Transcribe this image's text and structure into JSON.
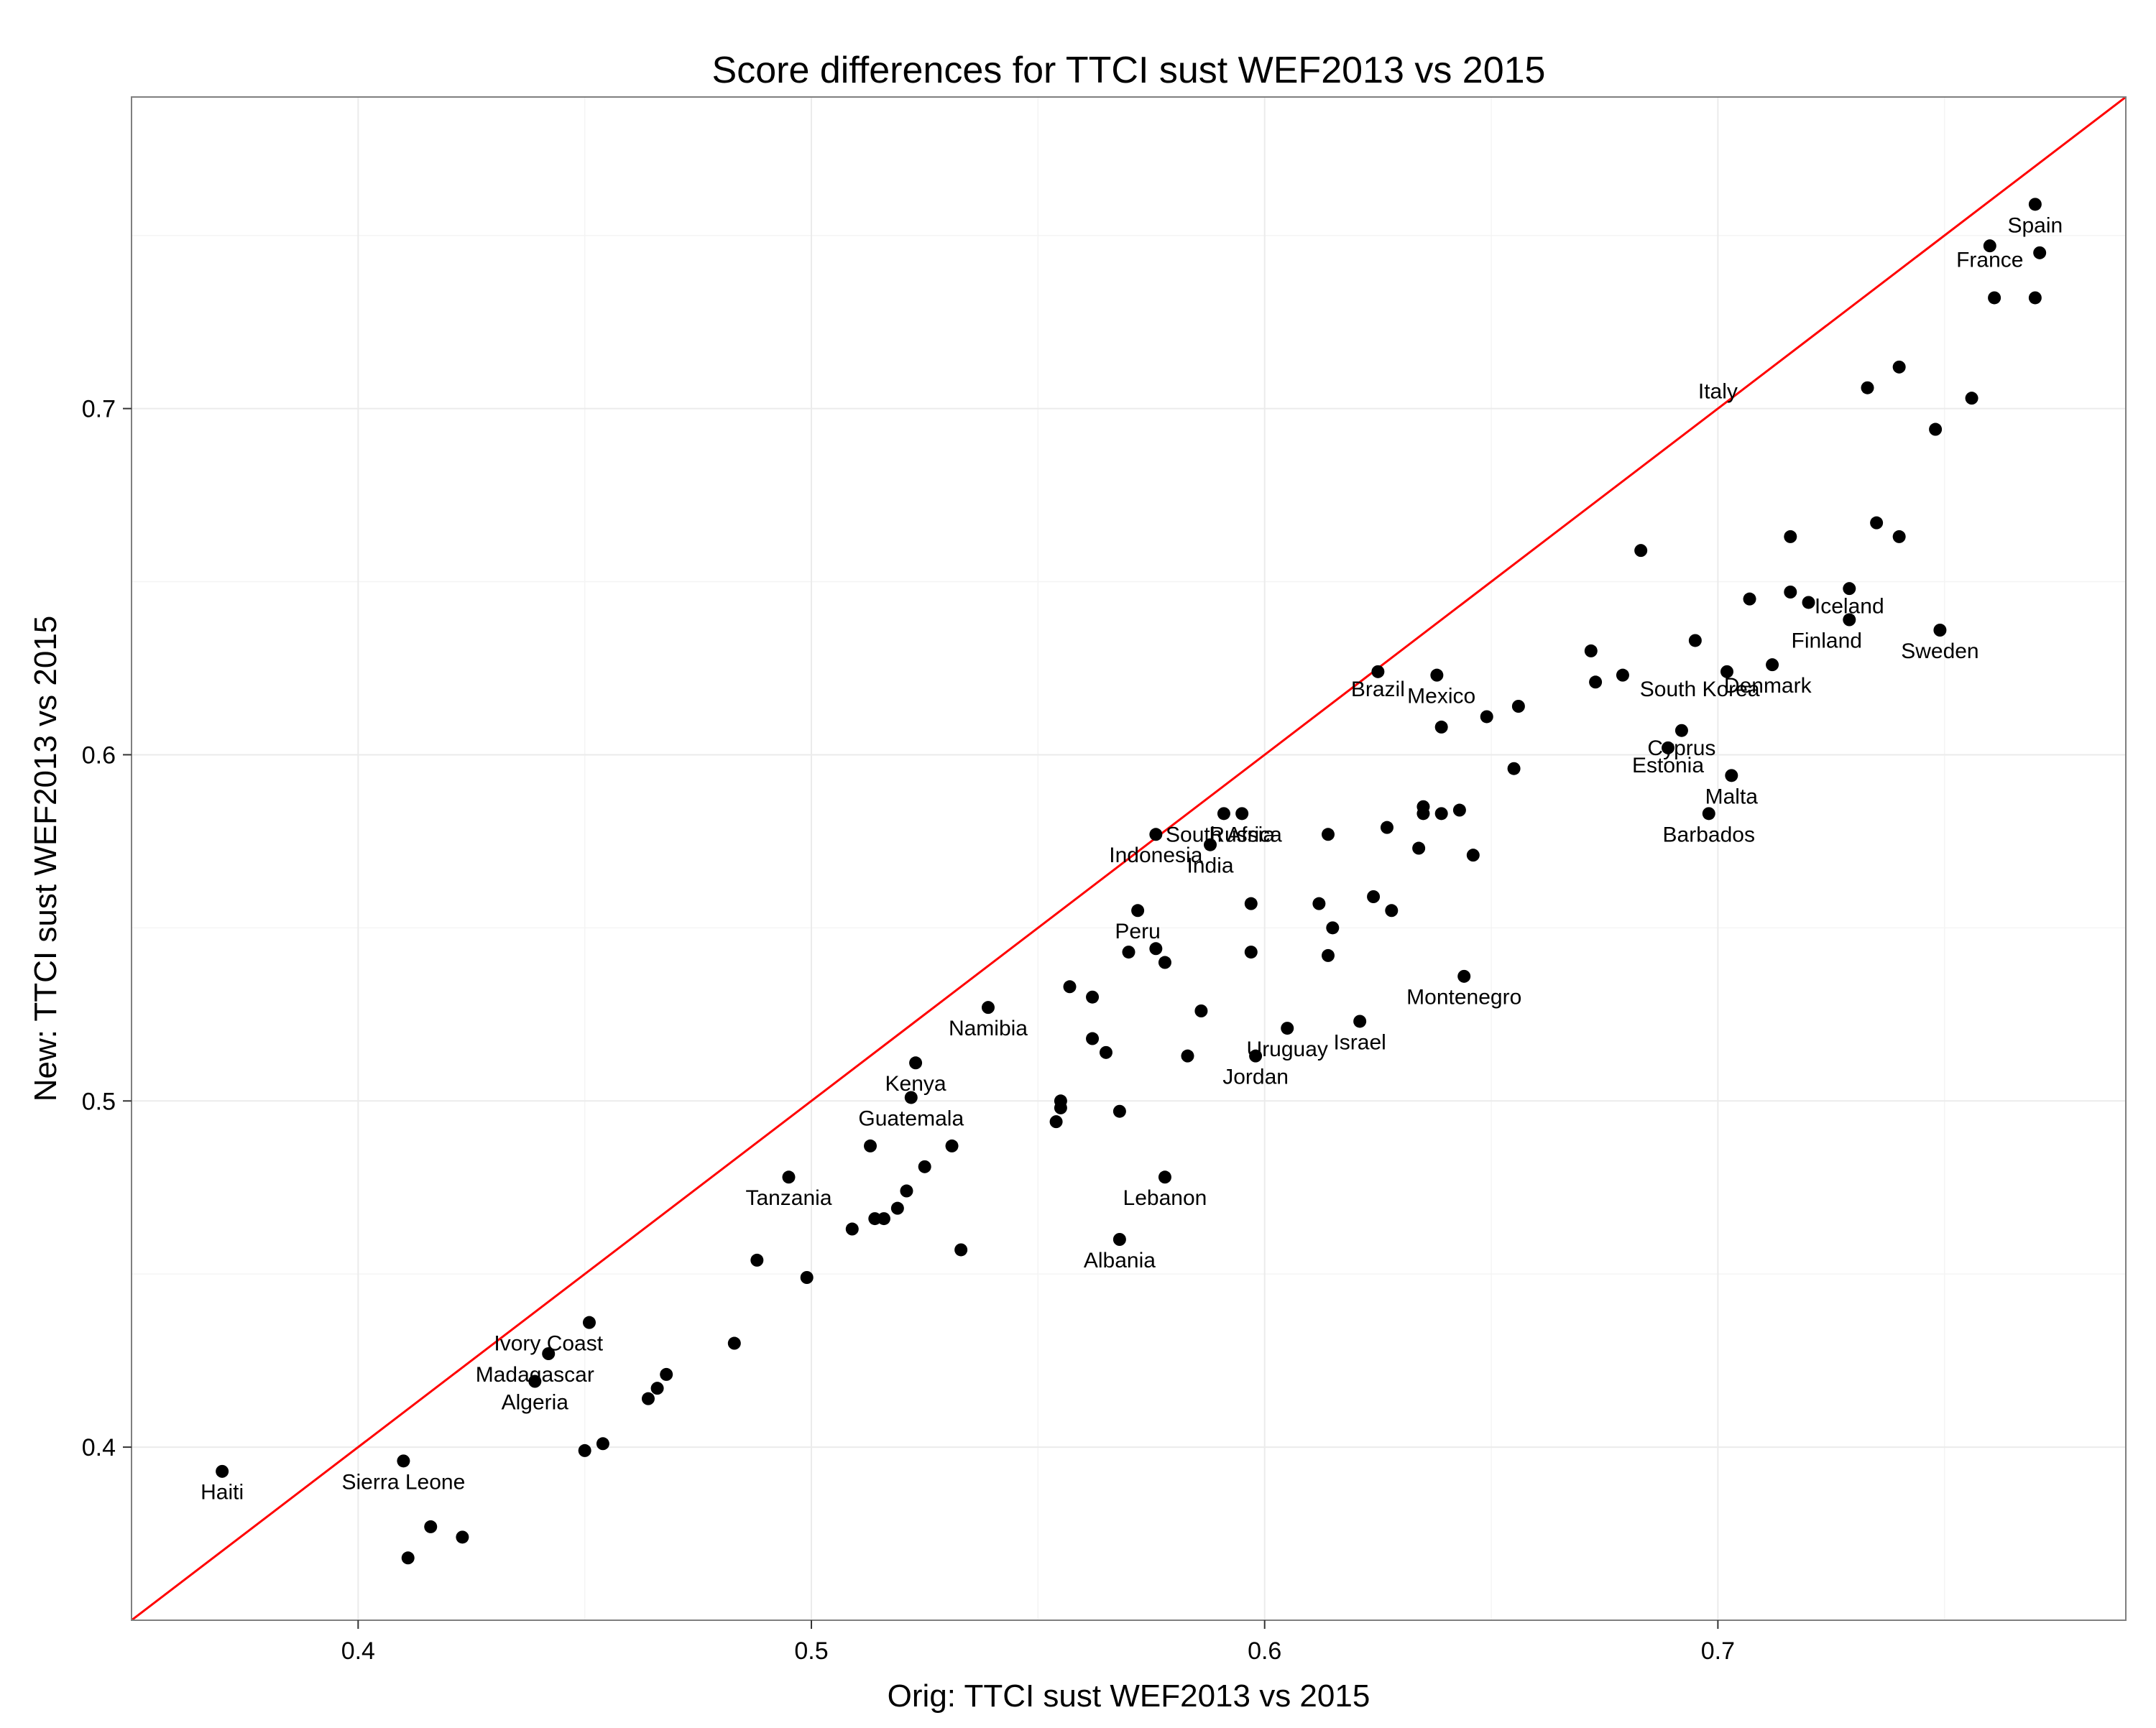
{
  "chart_data": {
    "type": "scatter",
    "title": "Score differences for TTCI sust WEF2013 vs 2015",
    "xlabel": "Orig: TTCI sust WEF2013 vs 2015",
    "ylabel": "New: TTCI sust WEF2013 vs 2015",
    "xlim": [
      0.35,
      0.79
    ],
    "ylim": [
      0.35,
      0.79
    ],
    "x_ticks": [
      0.4,
      0.5,
      0.6,
      0.7
    ],
    "x_tick_labels": [
      "0.4",
      "0.5",
      "0.6",
      "0.7"
    ],
    "y_ticks": [
      0.4,
      0.5,
      0.6,
      0.7
    ],
    "y_tick_labels": [
      "0.4",
      "0.5",
      "0.6",
      "0.7"
    ],
    "grid": true,
    "reference_line": {
      "type": "identity",
      "slope": 1,
      "intercept": 0,
      "color": "#ff0000"
    },
    "colors": {
      "points": "#000000",
      "line": "#ff0000",
      "grid": "#ebebeb",
      "panel_border": "#7f7f7f"
    },
    "points": [
      {
        "x": 0.77,
        "y": 0.759
      },
      {
        "x": 0.76,
        "y": 0.747
      },
      {
        "x": 0.771,
        "y": 0.745
      },
      {
        "x": 0.761,
        "y": 0.732
      },
      {
        "x": 0.77,
        "y": 0.732
      },
      {
        "x": 0.74,
        "y": 0.712
      },
      {
        "x": 0.733,
        "y": 0.706
      },
      {
        "x": 0.756,
        "y": 0.703
      },
      {
        "x": 0.748,
        "y": 0.694
      },
      {
        "x": 0.735,
        "y": 0.667
      },
      {
        "x": 0.74,
        "y": 0.663
      },
      {
        "x": 0.716,
        "y": 0.663
      },
      {
        "x": 0.729,
        "y": 0.648
      },
      {
        "x": 0.716,
        "y": 0.647
      },
      {
        "x": 0.707,
        "y": 0.645
      },
      {
        "x": 0.72,
        "y": 0.644
      },
      {
        "x": 0.729,
        "y": 0.639
      },
      {
        "x": 0.749,
        "y": 0.636
      },
      {
        "x": 0.695,
        "y": 0.633
      },
      {
        "x": 0.683,
        "y": 0.659
      },
      {
        "x": 0.672,
        "y": 0.63
      },
      {
        "x": 0.712,
        "y": 0.626
      },
      {
        "x": 0.702,
        "y": 0.624
      },
      {
        "x": 0.679,
        "y": 0.623
      },
      {
        "x": 0.673,
        "y": 0.621
      },
      {
        "x": 0.692,
        "y": 0.607
      },
      {
        "x": 0.689,
        "y": 0.602
      },
      {
        "x": 0.703,
        "y": 0.594
      },
      {
        "x": 0.698,
        "y": 0.583
      },
      {
        "x": 0.656,
        "y": 0.614
      },
      {
        "x": 0.649,
        "y": 0.611
      },
      {
        "x": 0.639,
        "y": 0.608
      },
      {
        "x": 0.655,
        "y": 0.596
      },
      {
        "x": 0.638,
        "y": 0.623
      },
      {
        "x": 0.625,
        "y": 0.624
      },
      {
        "x": 0.643,
        "y": 0.584
      },
      {
        "x": 0.635,
        "y": 0.585
      },
      {
        "x": 0.635,
        "y": 0.583
      },
      {
        "x": 0.639,
        "y": 0.583
      },
      {
        "x": 0.627,
        "y": 0.579
      },
      {
        "x": 0.634,
        "y": 0.573
      },
      {
        "x": 0.646,
        "y": 0.571
      },
      {
        "x": 0.614,
        "y": 0.577
      },
      {
        "x": 0.591,
        "y": 0.583
      },
      {
        "x": 0.595,
        "y": 0.583
      },
      {
        "x": 0.576,
        "y": 0.577
      },
      {
        "x": 0.588,
        "y": 0.574
      },
      {
        "x": 0.624,
        "y": 0.559
      },
      {
        "x": 0.612,
        "y": 0.557
      },
      {
        "x": 0.597,
        "y": 0.557
      },
      {
        "x": 0.628,
        "y": 0.555
      },
      {
        "x": 0.615,
        "y": 0.55
      },
      {
        "x": 0.572,
        "y": 0.555
      },
      {
        "x": 0.576,
        "y": 0.544
      },
      {
        "x": 0.57,
        "y": 0.543
      },
      {
        "x": 0.578,
        "y": 0.54
      },
      {
        "x": 0.597,
        "y": 0.543
      },
      {
        "x": 0.614,
        "y": 0.542
      },
      {
        "x": 0.644,
        "y": 0.536
      },
      {
        "x": 0.557,
        "y": 0.533
      },
      {
        "x": 0.562,
        "y": 0.53
      },
      {
        "x": 0.539,
        "y": 0.527
      },
      {
        "x": 0.586,
        "y": 0.526
      },
      {
        "x": 0.621,
        "y": 0.523
      },
      {
        "x": 0.605,
        "y": 0.521
      },
      {
        "x": 0.562,
        "y": 0.518
      },
      {
        "x": 0.565,
        "y": 0.514
      },
      {
        "x": 0.583,
        "y": 0.513
      },
      {
        "x": 0.598,
        "y": 0.513
      },
      {
        "x": 0.523,
        "y": 0.511
      },
      {
        "x": 0.522,
        "y": 0.501
      },
      {
        "x": 0.555,
        "y": 0.5
      },
      {
        "x": 0.555,
        "y": 0.498
      },
      {
        "x": 0.568,
        "y": 0.497
      },
      {
        "x": 0.554,
        "y": 0.494
      },
      {
        "x": 0.513,
        "y": 0.487
      },
      {
        "x": 0.531,
        "y": 0.487
      },
      {
        "x": 0.525,
        "y": 0.481
      },
      {
        "x": 0.495,
        "y": 0.478
      },
      {
        "x": 0.578,
        "y": 0.478
      },
      {
        "x": 0.521,
        "y": 0.474
      },
      {
        "x": 0.519,
        "y": 0.469
      },
      {
        "x": 0.514,
        "y": 0.466
      },
      {
        "x": 0.516,
        "y": 0.466
      },
      {
        "x": 0.509,
        "y": 0.463
      },
      {
        "x": 0.568,
        "y": 0.46
      },
      {
        "x": 0.533,
        "y": 0.457
      },
      {
        "x": 0.488,
        "y": 0.454
      },
      {
        "x": 0.499,
        "y": 0.449
      },
      {
        "x": 0.451,
        "y": 0.436
      },
      {
        "x": 0.483,
        "y": 0.43
      },
      {
        "x": 0.442,
        "y": 0.427
      },
      {
        "x": 0.468,
        "y": 0.421
      },
      {
        "x": 0.439,
        "y": 0.419
      },
      {
        "x": 0.466,
        "y": 0.417
      },
      {
        "x": 0.464,
        "y": 0.414
      },
      {
        "x": 0.454,
        "y": 0.401
      },
      {
        "x": 0.45,
        "y": 0.399
      },
      {
        "x": 0.41,
        "y": 0.396
      },
      {
        "x": 0.37,
        "y": 0.393
      },
      {
        "x": 0.416,
        "y": 0.377
      },
      {
        "x": 0.423,
        "y": 0.374
      },
      {
        "x": 0.411,
        "y": 0.368
      }
    ],
    "labels": [
      {
        "text": "Spain",
        "x": 0.77,
        "y": 0.753
      },
      {
        "text": "France",
        "x": 0.76,
        "y": 0.743
      },
      {
        "text": "Italy",
        "x": 0.7,
        "y": 0.705
      },
      {
        "text": "Iceland",
        "x": 0.729,
        "y": 0.643
      },
      {
        "text": "Finland",
        "x": 0.724,
        "y": 0.633
      },
      {
        "text": "Sweden",
        "x": 0.749,
        "y": 0.63
      },
      {
        "text": "South Korea",
        "x": 0.696,
        "y": 0.619
      },
      {
        "text": "Denmark",
        "x": 0.711,
        "y": 0.62
      },
      {
        "text": "Cyprus",
        "x": 0.692,
        "y": 0.602
      },
      {
        "text": "Estonia",
        "x": 0.689,
        "y": 0.597
      },
      {
        "text": "Malta",
        "x": 0.703,
        "y": 0.588
      },
      {
        "text": "Barbados",
        "x": 0.698,
        "y": 0.577
      },
      {
        "text": "Brazil",
        "x": 0.625,
        "y": 0.619
      },
      {
        "text": "Mexico",
        "x": 0.639,
        "y": 0.617
      },
      {
        "text": "South Africa",
        "x": 0.591,
        "y": 0.577
      },
      {
        "text": "Russia",
        "x": 0.595,
        "y": 0.577
      },
      {
        "text": "Indonesia",
        "x": 0.576,
        "y": 0.571
      },
      {
        "text": "India",
        "x": 0.588,
        "y": 0.568
      },
      {
        "text": "Peru",
        "x": 0.572,
        "y": 0.549
      },
      {
        "text": "Montenegro",
        "x": 0.644,
        "y": 0.53
      },
      {
        "text": "Namibia",
        "x": 0.539,
        "y": 0.521
      },
      {
        "text": "Israel",
        "x": 0.621,
        "y": 0.517
      },
      {
        "text": "Uruguay",
        "x": 0.605,
        "y": 0.515
      },
      {
        "text": "Jordan",
        "x": 0.598,
        "y": 0.507
      },
      {
        "text": "Kenya",
        "x": 0.523,
        "y": 0.505
      },
      {
        "text": "Guatemala",
        "x": 0.522,
        "y": 0.495
      },
      {
        "text": "Tanzania",
        "x": 0.495,
        "y": 0.472
      },
      {
        "text": "Lebanon",
        "x": 0.578,
        "y": 0.472
      },
      {
        "text": "Albania",
        "x": 0.568,
        "y": 0.454
      },
      {
        "text": "Ivory Coast",
        "x": 0.442,
        "y": 0.43
      },
      {
        "text": "Madagascar",
        "x": 0.439,
        "y": 0.421
      },
      {
        "text": "Algeria",
        "x": 0.439,
        "y": 0.413
      },
      {
        "text": "Sierra Leone",
        "x": 0.41,
        "y": 0.39
      },
      {
        "text": "Haiti",
        "x": 0.37,
        "y": 0.387
      }
    ]
  }
}
